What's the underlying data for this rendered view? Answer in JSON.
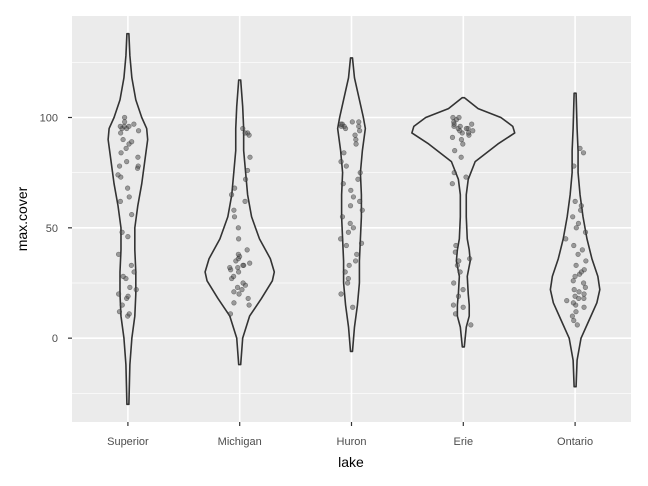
{
  "chart_data": {
    "type": "violin",
    "xlabel": "lake",
    "ylabel": "max.cover",
    "categories": [
      "Superior",
      "Michigan",
      "Huron",
      "Erie",
      "Ontario"
    ],
    "ylim": [
      -38,
      146
    ],
    "yticks": [
      0,
      50,
      100
    ],
    "grid": true,
    "colors": {
      "panel": "#ebebeb",
      "grid": "#ffffff",
      "violin_fill": "#ebebeb",
      "violin_line": "#333333",
      "point": "#555555"
    },
    "violins": [
      {
        "name": "Superior",
        "range": [
          -30,
          138
        ],
        "profile": [
          [
            -30,
            0.01
          ],
          [
            -12,
            0.02
          ],
          [
            0,
            0.04
          ],
          [
            10,
            0.07
          ],
          [
            20,
            0.08
          ],
          [
            30,
            0.08
          ],
          [
            40,
            0.07
          ],
          [
            50,
            0.07
          ],
          [
            60,
            0.1
          ],
          [
            70,
            0.14
          ],
          [
            80,
            0.17
          ],
          [
            90,
            0.2
          ],
          [
            95,
            0.19
          ],
          [
            100,
            0.14
          ],
          [
            108,
            0.08
          ],
          [
            118,
            0.04
          ],
          [
            128,
            0.02
          ],
          [
            138,
            0.01
          ]
        ]
      },
      {
        "name": "Michigan",
        "range": [
          -12,
          117
        ],
        "profile": [
          [
            -12,
            0.01
          ],
          [
            0,
            0.03
          ],
          [
            10,
            0.1
          ],
          [
            18,
            0.22
          ],
          [
            26,
            0.33
          ],
          [
            30,
            0.35
          ],
          [
            36,
            0.31
          ],
          [
            45,
            0.2
          ],
          [
            55,
            0.12
          ],
          [
            65,
            0.08
          ],
          [
            75,
            0.06
          ],
          [
            85,
            0.04
          ],
          [
            95,
            0.04
          ],
          [
            105,
            0.03
          ],
          [
            117,
            0.01
          ]
        ]
      },
      {
        "name": "Huron",
        "range": [
          -6,
          127
        ],
        "profile": [
          [
            -6,
            0.01
          ],
          [
            5,
            0.03
          ],
          [
            15,
            0.06
          ],
          [
            25,
            0.08
          ],
          [
            35,
            0.08
          ],
          [
            45,
            0.09
          ],
          [
            55,
            0.1
          ],
          [
            65,
            0.1
          ],
          [
            75,
            0.09
          ],
          [
            85,
            0.11
          ],
          [
            95,
            0.14
          ],
          [
            100,
            0.12
          ],
          [
            108,
            0.08
          ],
          [
            118,
            0.03
          ],
          [
            127,
            0.01
          ]
        ]
      },
      {
        "name": "Erie",
        "range": [
          -4,
          109
        ],
        "profile": [
          [
            -4,
            0.01
          ],
          [
            5,
            0.03
          ],
          [
            10,
            0.06
          ],
          [
            15,
            0.06
          ],
          [
            20,
            0.05
          ],
          [
            28,
            0.04
          ],
          [
            35,
            0.07
          ],
          [
            40,
            0.06
          ],
          [
            45,
            0.04
          ],
          [
            55,
            0.03
          ],
          [
            65,
            0.03
          ],
          [
            72,
            0.05
          ],
          [
            80,
            0.12
          ],
          [
            88,
            0.35
          ],
          [
            93,
            0.52
          ],
          [
            96,
            0.5
          ],
          [
            100,
            0.38
          ],
          [
            104,
            0.15
          ],
          [
            109,
            0.01
          ]
        ]
      },
      {
        "name": "Ontario",
        "range": [
          -22,
          111
        ],
        "profile": [
          [
            -22,
            0.01
          ],
          [
            -10,
            0.02
          ],
          [
            0,
            0.06
          ],
          [
            8,
            0.14
          ],
          [
            16,
            0.22
          ],
          [
            22,
            0.25
          ],
          [
            28,
            0.23
          ],
          [
            36,
            0.17
          ],
          [
            45,
            0.12
          ],
          [
            55,
            0.08
          ],
          [
            65,
            0.05
          ],
          [
            75,
            0.03
          ],
          [
            85,
            0.03
          ],
          [
            95,
            0.02
          ],
          [
            111,
            0.01
          ]
        ]
      }
    ],
    "points": [
      {
        "name": "Superior",
        "values": [
          10,
          11,
          12,
          15,
          18,
          19,
          20,
          22,
          23,
          27,
          28,
          30,
          33,
          38,
          46,
          48,
          56,
          62,
          64,
          68,
          73,
          74,
          77,
          78,
          78,
          80,
          82,
          84,
          86,
          88,
          89,
          90,
          93,
          94,
          95,
          95,
          96,
          96,
          96,
          97,
          98,
          100
        ]
      },
      {
        "name": "Michigan",
        "values": [
          11,
          15,
          16,
          18,
          20,
          21,
          22,
          23,
          24,
          25,
          27,
          28,
          30,
          31,
          32,
          32,
          33,
          33,
          34,
          35,
          36,
          37,
          38,
          40,
          45,
          50,
          55,
          58,
          62,
          65,
          68,
          72,
          76,
          82,
          92,
          93,
          93,
          95
        ]
      },
      {
        "name": "Huron",
        "values": [
          14,
          20,
          25,
          27,
          30,
          33,
          35,
          38,
          42,
          43,
          45,
          48,
          50,
          52,
          55,
          58,
          60,
          62,
          64,
          67,
          70,
          72,
          75,
          78,
          80,
          84,
          88,
          90,
          92,
          94,
          95,
          96,
          96,
          96,
          97,
          97,
          98,
          98
        ]
      },
      {
        "name": "Erie",
        "values": [
          6,
          11,
          14,
          15,
          19,
          22,
          25,
          30,
          33,
          35,
          36,
          39,
          42,
          70,
          73,
          75,
          82,
          85,
          88,
          90,
          91,
          92,
          93,
          93,
          94,
          94,
          95,
          95,
          95,
          96,
          96,
          97,
          97,
          98,
          99,
          100,
          100
        ]
      },
      {
        "name": "Ontario",
        "values": [
          6,
          8,
          10,
          12,
          14,
          15,
          16,
          17,
          18,
          18,
          19,
          20,
          21,
          22,
          23,
          25,
          26,
          28,
          29,
          30,
          31,
          33,
          35,
          38,
          40,
          42,
          45,
          48,
          50,
          52,
          55,
          58,
          60,
          62,
          78,
          84,
          86
        ]
      }
    ]
  }
}
